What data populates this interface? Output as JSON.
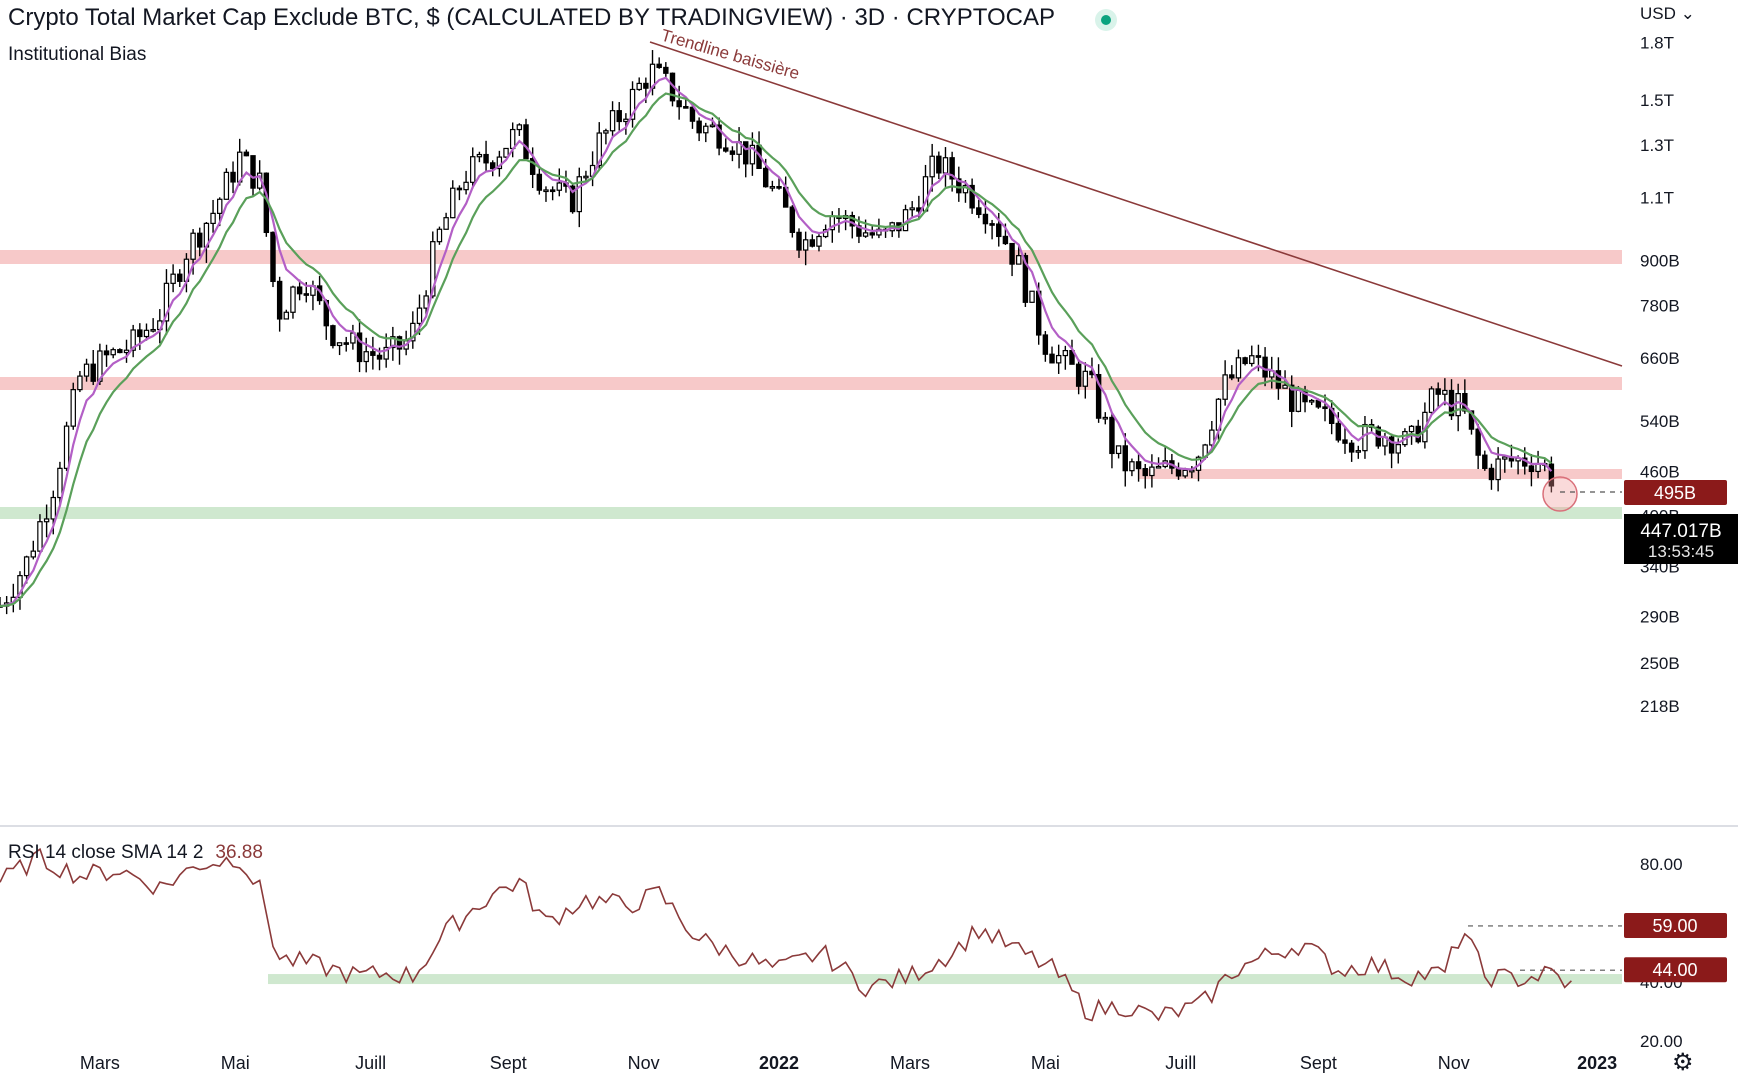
{
  "header": {
    "title": "Crypto Total Market Cap Exclude BTC, $ (CALCULATED BY TRADINGVIEW) · 3D · CRYPTOCAP",
    "subtitle": "Institutional Bias",
    "currency": "USD",
    "currency_icon": "chevron-down-icon"
  },
  "colors": {
    "trendline": "#8b3a3a",
    "resistance_zone": "#f7c9c9",
    "support_zone": "#cfe8cf",
    "ema_fast": "#b35fc6",
    "ema_slow": "#5aa05a",
    "rsi_line": "#8b3a3a",
    "badge": "#8b1a1a",
    "live_dot": "#0aa37f"
  },
  "chart_data": [
    {
      "type": "candlestick",
      "title": "Crypto Total Market Cap Exclude BTC, $ (CALCULATED BY TRADINGVIEW) · 3D · CRYPTOCAP",
      "ylabel": "",
      "y_scale": "log",
      "ylim": [
        190,
        1800
      ],
      "y_unit": "B (billions USD)",
      "y_tick_labels": [
        "218B",
        "250B",
        "290B",
        "340B",
        "400B",
        "460B",
        "540B",
        "660B",
        "780B",
        "900B",
        "1.1T",
        "1.3T",
        "1.5T",
        "1.8T"
      ],
      "x_tick_labels": [
        "Mars",
        "Mai",
        "Juill",
        "Sept",
        "Nov",
        "2022",
        "Mars",
        "Mai",
        "Juill",
        "Sept",
        "Nov",
        "2023"
      ],
      "x_range": [
        "2021-01-15",
        "2023-01-05"
      ],
      "close_series": {
        "dates": [
          "2021-01-15",
          "2021-01-27",
          "2021-02-08",
          "2021-02-20",
          "2021-03-04",
          "2021-03-16",
          "2021-03-28",
          "2021-04-09",
          "2021-04-21",
          "2021-05-03",
          "2021-05-12",
          "2021-05-20",
          "2021-06-01",
          "2021-06-13",
          "2021-06-25",
          "2021-07-07",
          "2021-07-19",
          "2021-07-31",
          "2021-08-12",
          "2021-08-24",
          "2021-09-05",
          "2021-09-17",
          "2021-09-29",
          "2021-10-11",
          "2021-10-23",
          "2021-11-04",
          "2021-11-13",
          "2021-11-25",
          "2021-12-07",
          "2021-12-19",
          "2021-12-31",
          "2022-01-12",
          "2022-01-24",
          "2022-02-05",
          "2022-02-17",
          "2022-03-01",
          "2022-03-13",
          "2022-03-25",
          "2022-04-06",
          "2022-04-18",
          "2022-04-30",
          "2022-05-09",
          "2022-05-21",
          "2022-06-02",
          "2022-06-14",
          "2022-06-26",
          "2022-07-08",
          "2022-07-20",
          "2022-08-01",
          "2022-08-13",
          "2022-08-25",
          "2022-09-06",
          "2022-09-18",
          "2022-09-30",
          "2022-10-12",
          "2022-10-24",
          "2022-11-05",
          "2022-11-14",
          "2022-11-26",
          "2022-12-08",
          "2022-12-17"
        ],
        "values": [
          300,
          345,
          440,
          620,
          660,
          690,
          760,
          930,
          1050,
          1250,
          1150,
          760,
          860,
          720,
          680,
          660,
          700,
          960,
          1180,
          1250,
          1350,
          1150,
          1080,
          1300,
          1450,
          1650,
          1550,
          1380,
          1350,
          1250,
          1100,
          950,
          1050,
          1000,
          960,
          1050,
          1230,
          1140,
          1050,
          900,
          700,
          650,
          610,
          480,
          450,
          465,
          480,
          600,
          660,
          610,
          560,
          540,
          510,
          520,
          500,
          590,
          560,
          460,
          475,
          480,
          447
        ]
      },
      "last_price": "447.017B",
      "countdown": "13:53:45",
      "marked_level": "495B",
      "annotations": [
        "Trendline baissière"
      ],
      "resistance_zones": [
        "~960B",
        "~670B",
        "~512B (Jul 2022 – Dec 2022)"
      ],
      "support_zones": [
        "~465B"
      ]
    },
    {
      "type": "line",
      "title": "RSI 14 close SMA 14 2",
      "current_value": "36.88",
      "ylim": [
        15,
        90
      ],
      "y_tick_labels": [
        "20.00",
        "40.00",
        "80.00"
      ],
      "levels": [
        "59.00",
        "44.00"
      ],
      "support_zone": 41,
      "dates": [
        "2021-01-15",
        "2021-02-01",
        "2021-02-20",
        "2021-03-10",
        "2021-03-28",
        "2021-04-15",
        "2021-05-03",
        "2021-05-13",
        "2021-05-20",
        "2021-06-05",
        "2021-06-25",
        "2021-07-10",
        "2021-07-20",
        "2021-08-05",
        "2021-08-25",
        "2021-09-06",
        "2021-09-18",
        "2021-10-05",
        "2021-10-25",
        "2021-11-08",
        "2021-11-25",
        "2021-12-10",
        "2021-12-31",
        "2022-01-20",
        "2022-02-10",
        "2022-03-01",
        "2022-03-20",
        "2022-04-01",
        "2022-04-20",
        "2022-05-05",
        "2022-05-20",
        "2022-06-05",
        "2022-06-20",
        "2022-07-10",
        "2022-07-25",
        "2022-08-12",
        "2022-08-25",
        "2022-09-10",
        "2022-09-25",
        "2022-10-10",
        "2022-10-28",
        "2022-11-05",
        "2022-11-15",
        "2022-12-01",
        "2022-12-15",
        "2022-12-25"
      ],
      "values": [
        74,
        82,
        76,
        78,
        72,
        80,
        82,
        70,
        48,
        46,
        42,
        43,
        42,
        58,
        70,
        74,
        60,
        68,
        66,
        70,
        55,
        50,
        44,
        50,
        38,
        42,
        50,
        58,
        50,
        44,
        30,
        32,
        28,
        32,
        44,
        50,
        53,
        44,
        46,
        42,
        43,
        58,
        42,
        41,
        43,
        38
      ]
    }
  ]
}
